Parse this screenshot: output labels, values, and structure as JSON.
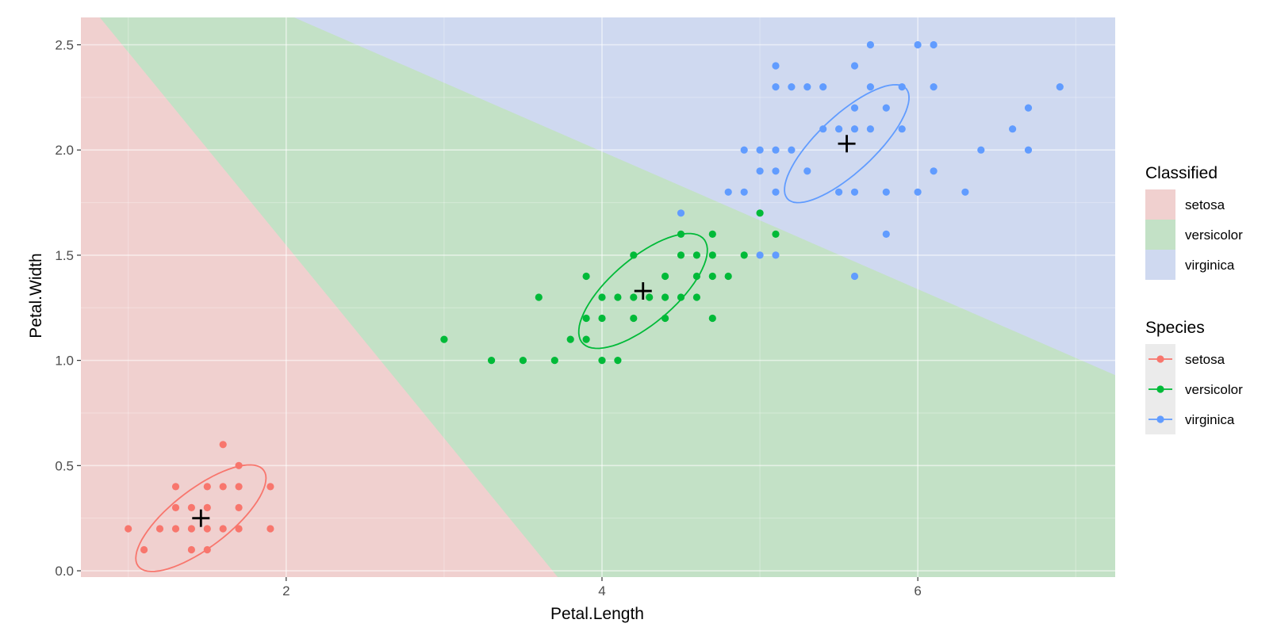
{
  "chart_data": {
    "type": "scatter",
    "xlabel": "Petal.Length",
    "ylabel": "Petal.Width",
    "xlim": [
      0.7,
      7.25
    ],
    "ylim": [
      -0.03,
      2.63
    ],
    "x_ticks": [
      2,
      4,
      6
    ],
    "x_tick_labels": [
      "2",
      "4",
      "6"
    ],
    "y_ticks": [
      0.0,
      0.5,
      1.0,
      1.5,
      2.0,
      2.5
    ],
    "y_tick_labels": [
      "0.0",
      "0.5",
      "1.0",
      "1.5",
      "2.0",
      "2.5"
    ],
    "grid": true,
    "legend_position": "right",
    "classified_regions": {
      "description_ignored": "",
      "boundary_setosa_versicolor": [
        [
          0.82,
          2.63
        ],
        [
          3.72,
          -0.03
        ]
      ],
      "boundary_versicolor_virginica": [
        [
          2.05,
          2.63
        ],
        [
          7.25,
          0.93
        ]
      ]
    },
    "legends": [
      {
        "title": "Classified",
        "entries": [
          {
            "label": "setosa",
            "color": "#f8766d"
          },
          {
            "label": "versicolor",
            "color": "#00ba38"
          },
          {
            "label": "virginica",
            "color": "#619cff"
          }
        ]
      },
      {
        "title": "Species",
        "entries": [
          {
            "label": "setosa",
            "color": "#f8766d"
          },
          {
            "label": "versicolor",
            "color": "#00ba38"
          },
          {
            "label": "virginica",
            "color": "#619cff"
          }
        ]
      }
    ],
    "series": [
      {
        "name": "setosa",
        "color": "#f8766d",
        "points": [
          [
            1.0,
            0.2
          ],
          [
            1.1,
            0.1
          ],
          [
            1.2,
            0.2
          ],
          [
            1.3,
            0.2
          ],
          [
            1.3,
            0.3
          ],
          [
            1.3,
            0.4
          ],
          [
            1.4,
            0.2
          ],
          [
            1.4,
            0.3
          ],
          [
            1.4,
            0.1
          ],
          [
            1.5,
            0.2
          ],
          [
            1.5,
            0.1
          ],
          [
            1.5,
            0.4
          ],
          [
            1.5,
            0.3
          ],
          [
            1.6,
            0.2
          ],
          [
            1.6,
            0.4
          ],
          [
            1.6,
            0.6
          ],
          [
            1.7,
            0.2
          ],
          [
            1.7,
            0.3
          ],
          [
            1.7,
            0.4
          ],
          [
            1.7,
            0.5
          ],
          [
            1.9,
            0.2
          ],
          [
            1.9,
            0.4
          ]
        ],
        "centroid": [
          1.46,
          0.25
        ],
        "ellipse": {
          "center": [
            1.46,
            0.25
          ],
          "semi_major": 0.46,
          "semi_minor": 0.15,
          "angle_deg": 28
        }
      },
      {
        "name": "versicolor",
        "color": "#00ba38",
        "points": [
          [
            3.0,
            1.1
          ],
          [
            3.3,
            1.0
          ],
          [
            3.5,
            1.0
          ],
          [
            3.6,
            1.3
          ],
          [
            3.7,
            1.0
          ],
          [
            3.8,
            1.1
          ],
          [
            3.9,
            1.1
          ],
          [
            3.9,
            1.2
          ],
          [
            3.9,
            1.4
          ],
          [
            4.0,
            1.0
          ],
          [
            4.0,
            1.2
          ],
          [
            4.0,
            1.3
          ],
          [
            4.1,
            1.0
          ],
          [
            4.1,
            1.3
          ],
          [
            4.2,
            1.2
          ],
          [
            4.2,
            1.3
          ],
          [
            4.2,
            1.5
          ],
          [
            4.3,
            1.3
          ],
          [
            4.4,
            1.2
          ],
          [
            4.4,
            1.3
          ],
          [
            4.4,
            1.4
          ],
          [
            4.5,
            1.3
          ],
          [
            4.5,
            1.5
          ],
          [
            4.5,
            1.6
          ],
          [
            4.6,
            1.3
          ],
          [
            4.6,
            1.4
          ],
          [
            4.6,
            1.5
          ],
          [
            4.7,
            1.2
          ],
          [
            4.7,
            1.4
          ],
          [
            4.7,
            1.5
          ],
          [
            4.7,
            1.6
          ],
          [
            4.8,
            1.4
          ],
          [
            4.9,
            1.5
          ],
          [
            5.0,
            1.7
          ],
          [
            5.1,
            1.6
          ]
        ],
        "centroid": [
          4.26,
          1.33
        ],
        "ellipse": {
          "center": [
            4.26,
            1.33
          ],
          "semi_major": 0.46,
          "semi_minor": 0.17,
          "angle_deg": 30
        }
      },
      {
        "name": "virginica",
        "color": "#619cff",
        "points": [
          [
            4.5,
            1.7
          ],
          [
            4.8,
            1.8
          ],
          [
            4.9,
            1.8
          ],
          [
            4.9,
            2.0
          ],
          [
            5.0,
            1.5
          ],
          [
            5.0,
            1.9
          ],
          [
            5.0,
            2.0
          ],
          [
            5.1,
            1.5
          ],
          [
            5.1,
            1.8
          ],
          [
            5.1,
            1.9
          ],
          [
            5.1,
            2.0
          ],
          [
            5.1,
            2.3
          ],
          [
            5.1,
            2.4
          ],
          [
            5.2,
            2.0
          ],
          [
            5.2,
            2.3
          ],
          [
            5.3,
            1.9
          ],
          [
            5.3,
            2.3
          ],
          [
            5.4,
            2.1
          ],
          [
            5.4,
            2.3
          ],
          [
            5.5,
            1.8
          ],
          [
            5.5,
            2.1
          ],
          [
            5.6,
            1.4
          ],
          [
            5.6,
            1.8
          ],
          [
            5.6,
            2.1
          ],
          [
            5.6,
            2.2
          ],
          [
            5.6,
            2.4
          ],
          [
            5.7,
            2.1
          ],
          [
            5.7,
            2.3
          ],
          [
            5.7,
            2.5
          ],
          [
            5.8,
            1.6
          ],
          [
            5.8,
            1.8
          ],
          [
            5.8,
            2.2
          ],
          [
            5.9,
            2.1
          ],
          [
            5.9,
            2.3
          ],
          [
            6.0,
            1.8
          ],
          [
            6.0,
            2.5
          ],
          [
            6.1,
            1.9
          ],
          [
            6.1,
            2.3
          ],
          [
            6.1,
            2.5
          ],
          [
            6.3,
            1.8
          ],
          [
            6.4,
            2.0
          ],
          [
            6.6,
            2.1
          ],
          [
            6.7,
            2.0
          ],
          [
            6.7,
            2.2
          ],
          [
            6.9,
            2.3
          ]
        ],
        "centroid": [
          5.55,
          2.03
        ],
        "ellipse": {
          "center": [
            5.55,
            2.03
          ],
          "semi_major": 0.46,
          "semi_minor": 0.15,
          "angle_deg": 33
        }
      }
    ]
  }
}
